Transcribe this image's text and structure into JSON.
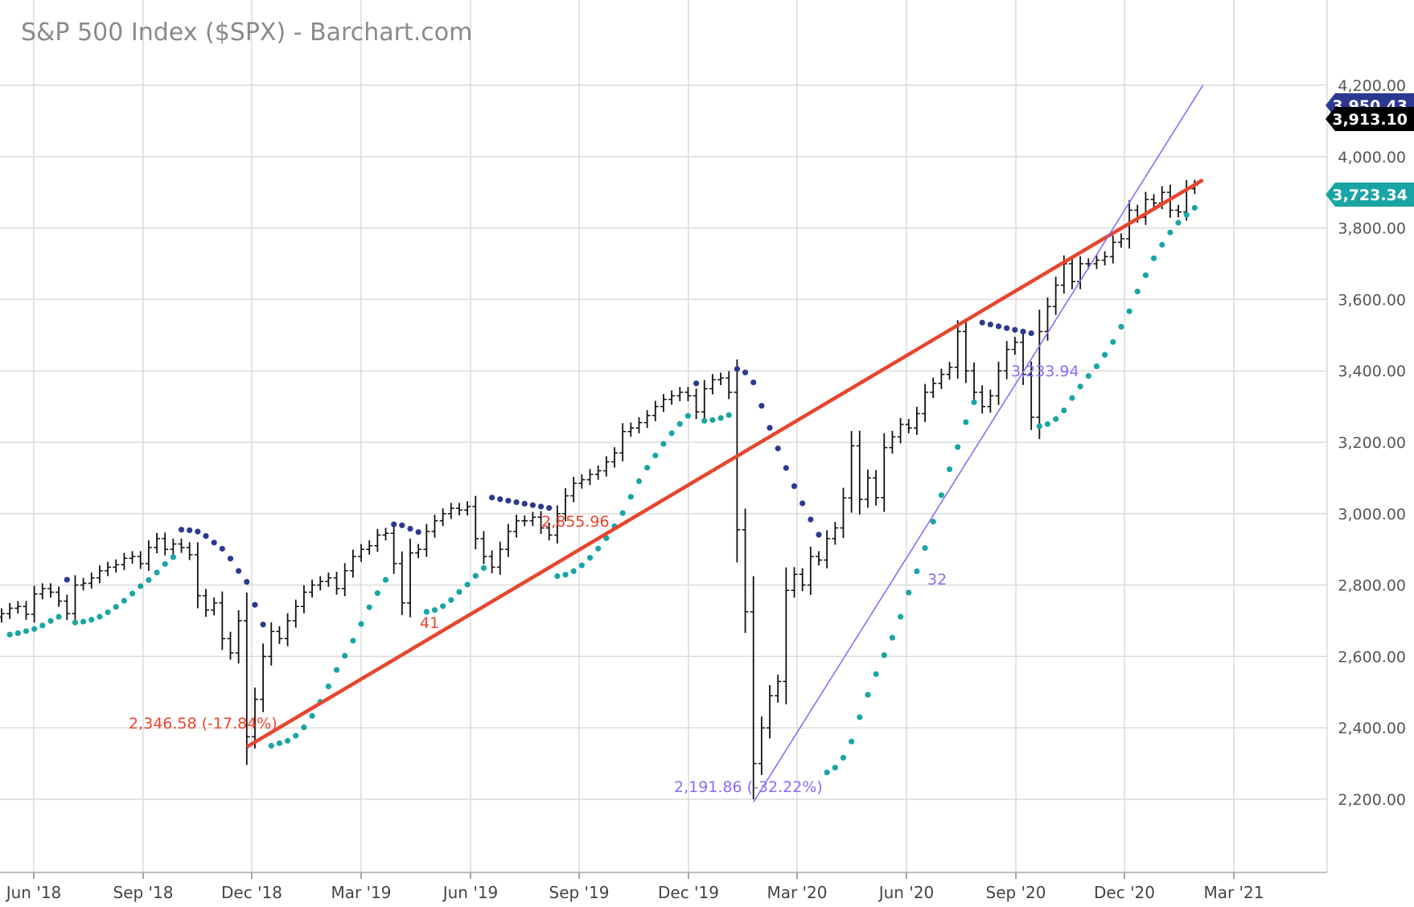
{
  "chart_data": {
    "type": "ohlc",
    "title": "S&P 500 Index ($SPX) - Barchart.com",
    "ylim": [
      2050,
      4200
    ],
    "grid": true,
    "y_ticks": [
      "2,200.00",
      "2,400.00",
      "2,600.00",
      "2,800.00",
      "3,000.00",
      "3,200.00",
      "3,400.00",
      "3,600.00",
      "3,800.00",
      "4,000.00",
      "4,200.00"
    ],
    "x_ticks": [
      "Jun '18",
      "Sep '18",
      "Dec '18",
      "Mar '19",
      "Jun '19",
      "Sep '19",
      "Dec '19",
      "Mar '20",
      "Jun '20",
      "Sep '20",
      "Dec '20",
      "Mar '21"
    ],
    "price_tags": [
      {
        "label": "3,950.43",
        "value": 3950.43,
        "color": "#2b3990"
      },
      {
        "label": "3,913.10",
        "value": 3913.1,
        "color": "#000000"
      },
      {
        "label": "3,723.34",
        "value": 3723.34,
        "color": "#1aa5a5"
      }
    ],
    "annotations": [
      {
        "text": "2,346.58 (-17.84%)",
        "color": "#e8452c"
      },
      {
        "text": "2,855.96",
        "color": "#e8452c"
      },
      {
        "text": "41",
        "color": "#e8452c"
      },
      {
        "text": "2,191.86 (-32.22%)",
        "color": "#8b6cf5"
      },
      {
        "text": "3,233.94",
        "color": "#8b6cf5"
      },
      {
        "text": "32",
        "color": "#8b6cf5"
      }
    ],
    "trend_lines": [
      {
        "name": "red",
        "color": "#e8452c",
        "from_week": 30,
        "from_value": 2346.58,
        "to_week": 147,
        "to_value": 3935
      },
      {
        "name": "violet",
        "color": "#8b6cf5",
        "from_week": 92,
        "from_value": 2191.86,
        "to_week": 147,
        "to_value": 4200
      }
    ],
    "weekly_close": [
      2720,
      2735,
      2740,
      2718,
      2775,
      2790,
      2780,
      2755,
      2720,
      2800,
      2805,
      2820,
      2840,
      2850,
      2857,
      2875,
      2880,
      2860,
      2905,
      2930,
      2900,
      2915,
      2905,
      2885,
      2770,
      2730,
      2750,
      2650,
      2610,
      2700,
      2375,
      2480,
      2600,
      2670,
      2650,
      2700,
      2740,
      2780,
      2800,
      2810,
      2820,
      2790,
      2840,
      2880,
      2900,
      2910,
      2940,
      2945,
      2860,
      2750,
      2890,
      2900,
      2950,
      2980,
      3000,
      3015,
      3010,
      3020,
      2930,
      2880,
      2850,
      2900,
      2950,
      2980,
      2980,
      2990,
      2960,
      2940,
      3000,
      3050,
      3085,
      3095,
      3110,
      3120,
      3145,
      3170,
      3230,
      3240,
      3255,
      3275,
      3300,
      3320,
      3330,
      3340,
      3330,
      3285,
      3350,
      3375,
      3380,
      3340,
      2955,
      2725,
      2300,
      2400,
      2490,
      2530,
      2785,
      2830,
      2800,
      2880,
      2870,
      2930,
      2960,
      3044,
      3190,
      3040,
      3100,
      3045,
      3185,
      3215,
      3250,
      3240,
      3280,
      3340,
      3365,
      3390,
      3410,
      3510,
      3400,
      3340,
      3300,
      3330,
      3400,
      3460,
      3480,
      3390,
      3270,
      3510,
      3580,
      3640,
      3700,
      3650,
      3700,
      3700,
      3710,
      3720,
      3760,
      3770,
      3850,
      3830,
      3880,
      3870,
      3900,
      3850,
      3845,
      3910,
      3920
    ],
    "parabolic_sar": {
      "below_color": "#1aa5a5",
      "above_color": "#2b3990"
    }
  }
}
